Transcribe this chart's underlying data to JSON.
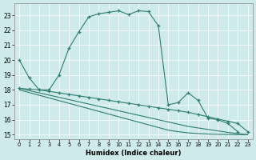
{
  "xlabel": "Humidex (Indice chaleur)",
  "bg_color": "#ceeaea",
  "grid_color": "#ffffff",
  "line_color": "#2e7d6e",
  "xlim": [
    -0.5,
    23.5
  ],
  "ylim": [
    14.7,
    23.8
  ],
  "yticks": [
    15,
    16,
    17,
    18,
    19,
    20,
    21,
    22,
    23
  ],
  "xticks": [
    0,
    1,
    2,
    3,
    4,
    5,
    6,
    7,
    8,
    9,
    10,
    11,
    12,
    13,
    14,
    15,
    16,
    17,
    18,
    19,
    20,
    21,
    22,
    23
  ],
  "curve1_x": [
    0,
    1,
    2,
    3,
    4,
    5,
    6,
    7,
    8,
    9,
    10,
    11,
    12,
    13,
    14,
    15,
    16,
    17,
    18,
    19,
    20,
    21,
    22,
    23
  ],
  "curve1_y": [
    20.0,
    18.8,
    18.0,
    18.0,
    19.0,
    20.8,
    21.9,
    22.9,
    23.1,
    23.2,
    23.3,
    23.05,
    23.3,
    23.25,
    22.3,
    17.0,
    17.15,
    17.8,
    17.3,
    16.1,
    16.0,
    15.75,
    15.2,
    null
  ],
  "curve2_x": [
    0,
    1,
    2,
    3,
    4,
    5,
    6,
    7,
    8,
    9,
    10,
    11,
    12,
    13,
    14,
    15,
    16,
    17,
    18,
    19,
    20,
    21,
    22,
    23
  ],
  "curve2_y": [
    18.1,
    18.05,
    18.0,
    17.9,
    17.8,
    17.7,
    17.6,
    17.5,
    17.4,
    17.3,
    17.2,
    17.1,
    17.0,
    16.9,
    16.8,
    16.7,
    16.6,
    16.5,
    16.35,
    16.2,
    16.05,
    15.9,
    15.75,
    15.2
  ],
  "curve3_x": [
    0,
    1,
    2,
    3,
    4,
    5,
    6,
    7,
    8,
    9,
    10,
    11,
    12,
    13,
    14,
    15,
    16,
    17,
    18,
    19,
    20,
    21,
    22,
    23
  ],
  "curve3_y": [
    18.1,
    17.95,
    17.8,
    17.65,
    17.5,
    17.35,
    17.2,
    17.05,
    16.9,
    16.75,
    16.6,
    16.45,
    16.3,
    16.15,
    16.0,
    15.85,
    15.7,
    15.55,
    15.45,
    15.35,
    15.25,
    15.15,
    15.07,
    15.0
  ],
  "curve4_x": [
    0,
    1,
    2,
    3,
    4,
    5,
    6,
    7,
    8,
    9,
    10,
    11,
    12,
    13,
    14,
    15,
    16,
    17,
    18,
    19,
    20,
    21,
    22,
    23
  ],
  "curve4_y": [
    18.0,
    17.82,
    17.64,
    17.46,
    17.28,
    17.1,
    16.92,
    16.74,
    16.56,
    16.38,
    16.2,
    16.02,
    15.84,
    15.66,
    15.48,
    15.3,
    15.2,
    15.12,
    15.07,
    15.04,
    15.02,
    15.01,
    15.0,
    15.0
  ]
}
